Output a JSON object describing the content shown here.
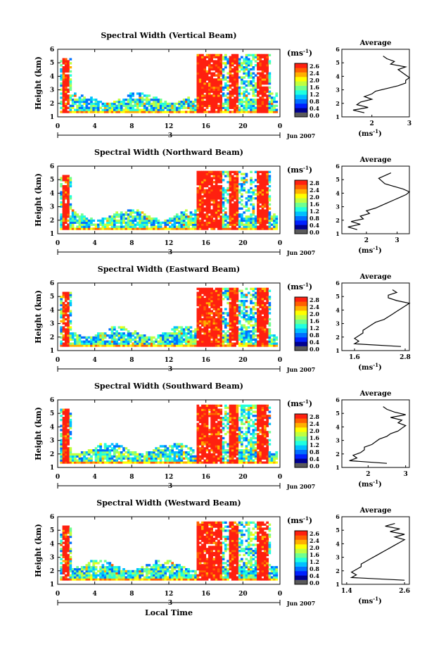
{
  "colorbar": {
    "unit_label": "(ms",
    "unit_sup": "-1",
    "unit_close": ")",
    "colors": [
      "#5a5a5a",
      "#00008f",
      "#0020ff",
      "#0070ff",
      "#00c0ff",
      "#20ffe0",
      "#70ff90",
      "#c0ff40",
      "#ffff00",
      "#ffb000",
      "#ff6000",
      "#ff2010"
    ]
  },
  "shared_axis": {
    "ylabel": "Height (km)",
    "xtick_labels": [
      "0",
      "4",
      "8",
      "12",
      "16",
      "20",
      "0"
    ],
    "date_label": "3",
    "month_label": "Jun 2007",
    "xlabel": "Local Time",
    "yticks": [
      "1",
      "2",
      "3",
      "4",
      "5",
      "6"
    ]
  },
  "chart_data": [
    {
      "type": "heatmap",
      "title": "Spectral Width (Vertical Beam)",
      "ylabel": "Height (km)",
      "xlabel": "",
      "xlim": [
        0,
        24
      ],
      "ylim": [
        1,
        6
      ],
      "colorbar_ticks": [
        "2.6",
        "2.4",
        "2.0",
        "1.6",
        "1.2",
        "0.8",
        "0.4",
        "0.0"
      ],
      "average_profile": {
        "title": "Average",
        "xticks": [
          "2",
          "3"
        ],
        "xlim": [
          1.2,
          3.0
        ],
        "xlabel": "(ms",
        "height_km": [
          1.3,
          1.5,
          1.7,
          1.9,
          2.1,
          2.3,
          2.5,
          2.7,
          2.9,
          3.1,
          3.3,
          3.5,
          3.7,
          3.9,
          4.1,
          4.3,
          4.5,
          4.7,
          4.9,
          5.1,
          5.3,
          5.5
        ],
        "width": [
          1.8,
          1.5,
          1.9,
          1.6,
          1.7,
          2.0,
          1.8,
          2.0,
          2.1,
          2.4,
          2.7,
          2.9,
          2.9,
          3.0,
          2.9,
          2.8,
          2.7,
          2.9,
          2.5,
          2.6,
          2.4,
          2.3
        ]
      }
    },
    {
      "type": "heatmap",
      "title": "Spectral Width (Northward Beam)",
      "ylabel": "Height (km)",
      "xlabel": "",
      "xlim": [
        0,
        24
      ],
      "ylim": [
        1,
        6
      ],
      "colorbar_ticks": [
        "2.8",
        "2.4",
        "2.0",
        "1.6",
        "1.2",
        "0.8",
        "0.4",
        "0.0"
      ],
      "average_profile": {
        "title": "Average",
        "xticks": [
          "2",
          "3"
        ],
        "xlim": [
          1.2,
          3.4
        ],
        "xlabel": "(ms",
        "height_km": [
          1.3,
          1.5,
          1.7,
          1.9,
          2.1,
          2.3,
          2.5,
          2.7,
          2.9,
          3.1,
          3.3,
          3.5,
          3.7,
          3.9,
          4.1,
          4.3,
          4.5,
          4.7,
          4.9,
          5.1,
          5.3,
          5.5
        ],
        "width": [
          1.7,
          1.4,
          1.8,
          1.5,
          1.9,
          1.8,
          2.1,
          2.0,
          2.3,
          2.5,
          2.7,
          2.9,
          3.1,
          3.3,
          3.4,
          3.2,
          2.9,
          2.6,
          2.5,
          2.4,
          2.6,
          2.8
        ]
      }
    },
    {
      "type": "heatmap",
      "title": "Spectral Width (Eastward Beam)",
      "ylabel": "Height (km)",
      "xlabel": "",
      "xlim": [
        0,
        24
      ],
      "ylim": [
        1,
        6
      ],
      "colorbar_ticks": [
        "2.8",
        "2.4",
        "2.0",
        "1.6",
        "1.2",
        "0.8",
        "0.4",
        "0.0"
      ],
      "average_profile": {
        "title": "Average",
        "xticks": [
          "1.6",
          "2.8"
        ],
        "xlim": [
          1.3,
          2.9
        ],
        "xlabel": "(ms",
        "height_km": [
          1.3,
          1.5,
          1.7,
          1.9,
          2.1,
          2.3,
          2.5,
          2.7,
          2.9,
          3.1,
          3.3,
          3.5,
          3.7,
          3.9,
          4.1,
          4.3,
          4.5,
          4.7,
          4.9,
          5.1,
          5.3,
          5.5
        ],
        "width": [
          2.7,
          1.6,
          1.7,
          1.6,
          1.7,
          1.8,
          1.8,
          1.9,
          2.0,
          2.1,
          2.3,
          2.4,
          2.5,
          2.6,
          2.7,
          2.8,
          2.9,
          2.6,
          2.4,
          2.4,
          2.6,
          2.5
        ]
      }
    },
    {
      "type": "heatmap",
      "title": "Spectral Width (Southward Beam)",
      "ylabel": "Height (km)",
      "xlabel": "",
      "xlim": [
        0,
        24
      ],
      "ylim": [
        1,
        6
      ],
      "colorbar_ticks": [
        "2.8",
        "2.4",
        "2.0",
        "1.6",
        "1.2",
        "0.8",
        "0.4",
        "0.0"
      ],
      "average_profile": {
        "title": "Average",
        "xticks": [
          "2",
          "3"
        ],
        "xlim": [
          1.3,
          3.1
        ],
        "xlabel": "(ms",
        "height_km": [
          1.3,
          1.5,
          1.7,
          1.9,
          2.1,
          2.3,
          2.5,
          2.7,
          2.9,
          3.1,
          3.3,
          3.5,
          3.7,
          3.9,
          4.1,
          4.3,
          4.5,
          4.7,
          4.9,
          5.1,
          5.3,
          5.5
        ],
        "width": [
          2.5,
          1.5,
          1.7,
          1.6,
          1.8,
          1.9,
          1.9,
          2.1,
          2.2,
          2.3,
          2.5,
          2.6,
          2.8,
          2.9,
          3.0,
          2.8,
          2.9,
          2.6,
          3.0,
          2.7,
          2.5,
          2.4
        ]
      }
    },
    {
      "type": "heatmap",
      "title": "Spectral Width (Westward Beam)",
      "ylabel": "Height (km)",
      "xlabel": "Local Time",
      "xlim": [
        0,
        24
      ],
      "ylim": [
        1,
        6
      ],
      "colorbar_ticks": [
        "2.6",
        "2.4",
        "2.0",
        "1.6",
        "1.2",
        "0.8",
        "0.4",
        "0.0"
      ],
      "average_profile": {
        "title": "Average",
        "xticks": [
          "1.4",
          "2.6"
        ],
        "xlim": [
          1.3,
          2.7
        ],
        "xlabel": "(ms",
        "height_km": [
          1.3,
          1.5,
          1.7,
          1.9,
          2.1,
          2.3,
          2.5,
          2.7,
          2.9,
          3.1,
          3.3,
          3.5,
          3.7,
          3.9,
          4.1,
          4.3,
          4.5,
          4.7,
          4.9,
          5.1,
          5.3,
          5.5
        ],
        "width": [
          2.6,
          1.5,
          1.6,
          1.5,
          1.6,
          1.7,
          1.7,
          1.8,
          1.9,
          2.0,
          2.1,
          2.2,
          2.3,
          2.4,
          2.5,
          2.6,
          2.4,
          2.6,
          2.3,
          2.5,
          2.2,
          2.4
        ]
      }
    }
  ]
}
